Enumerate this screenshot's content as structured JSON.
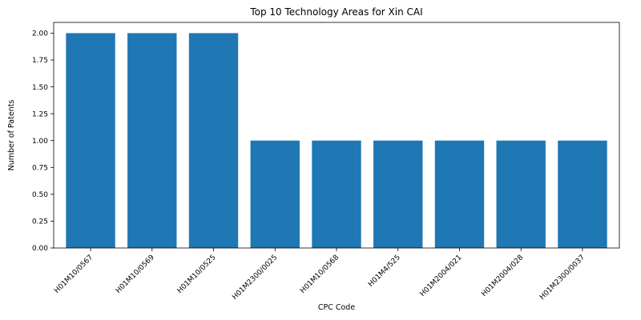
{
  "chart_data": {
    "type": "bar",
    "title": "Top 10 Technology Areas for Xin CAI",
    "xlabel": "CPC Code",
    "ylabel": "Number of Patents",
    "categories": [
      "H01M10/0567",
      "H01M10/0569",
      "H01M10/0525",
      "H01M2300/0025",
      "H01M10/0568",
      "H01M4/525",
      "H01M2004/021",
      "H01M2004/028",
      "H01M2300/0037"
    ],
    "values": [
      2,
      2,
      2,
      1,
      1,
      1,
      1,
      1,
      1
    ],
    "yticks": [
      "0.00",
      "0.25",
      "0.50",
      "0.75",
      "1.00",
      "1.25",
      "1.50",
      "1.75",
      "2.00"
    ],
    "ylim": [
      0,
      2.1
    ],
    "grid": false,
    "bar_color": "#1f77b4"
  }
}
